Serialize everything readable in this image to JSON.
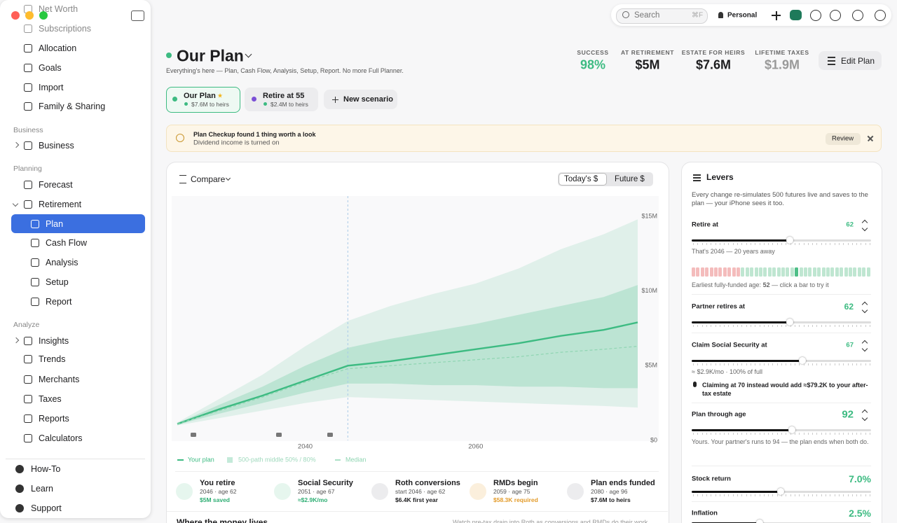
{
  "sidebar": {
    "top": [
      "Net Worth",
      "Subscriptions",
      "Allocation",
      "Goals",
      "Import",
      "Family & Sharing"
    ],
    "sections": [
      {
        "title": "Business",
        "items": [
          "Business"
        ]
      },
      {
        "title": "Planning",
        "items": [
          "Forecast",
          "Retirement",
          "Plan",
          "Cash Flow",
          "Analysis",
          "Setup",
          "Report"
        ]
      },
      {
        "title": "Analyze",
        "items": [
          "Insights",
          "Trends",
          "Merchants",
          "Taxes",
          "Reports",
          "Calculators"
        ]
      }
    ],
    "bottom": [
      "How-To",
      "Learn",
      "Support"
    ]
  },
  "toolbar": {
    "search": "Search",
    "shortcut": "⌘F",
    "profile": "Personal"
  },
  "header": {
    "title": "Our Plan",
    "subtitle": "Everything's here — Plan, Cash Flow, Analysis, Setup, Report. No more Full Planner.",
    "stats": [
      {
        "label": "SUCCESS",
        "value": "98%"
      },
      {
        "label": "AT RETIREMENT",
        "value": "$5M"
      },
      {
        "label": "ESTATE FOR HEIRS",
        "value": "$7.6M"
      },
      {
        "label": "LIFETIME TAXES",
        "value": "$1.9M"
      }
    ],
    "edit": "Edit Plan"
  },
  "scenarios": [
    {
      "name": "Our Plan",
      "star": "★",
      "detail": "$7.6M to heirs"
    },
    {
      "name": "Retire at 55",
      "detail": "$2.4M to heirs"
    }
  ],
  "new_scenario": "New scenario",
  "banner": {
    "title": "Plan Checkup found 1 thing worth a look",
    "text": "Dividend income is turned on",
    "action": "Review"
  },
  "card": {
    "compare": "Compare",
    "toggle": [
      "Today's $",
      "Future $"
    ],
    "milestones": [
      {
        "title": "You retire",
        "sub": "2046 · age 62",
        "detail": "$5M saved"
      },
      {
        "title": "Social Security",
        "sub": "2051 · age 67",
        "detail": "≈$2.9K/mo"
      },
      {
        "title": "Roth conversions",
        "sub": "start 2046 · age 62",
        "detail": "$6.4K first year"
      },
      {
        "title": "RMDs begin",
        "sub": "2059 · age 75",
        "detail": "$58.3K required"
      },
      {
        "title": "Plan ends funded",
        "sub": "2080 · age 96",
        "detail": "$7.6M to heirs"
      }
    ],
    "footer_title": "Where the money lives",
    "footer_text": "Watch pre-tax drain into Roth as conversions and RMDs do their work"
  },
  "chart_data": {
    "type": "fan",
    "x": [
      2025,
      2030,
      2035,
      2040,
      2045,
      2050,
      2055,
      2060,
      2065,
      2070,
      2075,
      2079
    ],
    "xlim": [
      2025,
      2079
    ],
    "xticks": [
      2040,
      2060
    ],
    "ylim": [
      0,
      15
    ],
    "yticks": [
      {
        "value": 15,
        "label": "$15M"
      },
      {
        "value": 10,
        "label": "$10M"
      },
      {
        "value": 5,
        "label": "$5M"
      },
      {
        "value": 0,
        "label": "$0"
      }
    ],
    "series": [
      {
        "name": "Your plan",
        "color": "#3dbb82",
        "values": [
          1.1,
          2.1,
          3.0,
          4.0,
          5.0,
          5.3,
          5.7,
          6.1,
          6.5,
          7.0,
          7.4,
          7.9
        ]
      },
      {
        "name": "Median",
        "color": "#8fd5b2",
        "values": [
          1.1,
          2.0,
          2.9,
          3.9,
          4.8,
          5.0,
          5.2,
          5.4,
          5.6,
          5.9,
          6.1,
          6.3
        ]
      }
    ],
    "band": {
      "name": "500-path middle 50% / 80%",
      "color": "#3dbb82",
      "p50": {
        "upper": [
          1.15,
          2.4,
          3.6,
          5.0,
          6.2,
          6.8,
          7.3,
          7.8,
          8.4,
          9.0,
          9.6,
          10.4
        ],
        "lower": [
          1.05,
          1.8,
          2.5,
          3.2,
          3.8,
          3.8,
          3.7,
          3.7,
          3.6,
          3.6,
          3.5,
          3.5
        ]
      },
      "p80": {
        "upper": [
          1.2,
          2.8,
          4.4,
          6.3,
          8.0,
          9.0,
          9.8,
          10.5,
          11.5,
          12.8,
          13.8,
          14.8
        ],
        "lower": [
          1.0,
          1.5,
          2.0,
          2.5,
          2.9,
          2.8,
          2.7,
          2.6,
          2.5,
          2.4,
          2.3,
          2.2
        ]
      }
    }
  },
  "levers": {
    "title": "Levers",
    "description": "Every change re-simulates 500 futures live and saves to the plan — your iPhone sees it too.",
    "retire": {
      "label": "Retire at",
      "value": "62",
      "note": "That's 2046 — 20 years away",
      "earliest": [
        "Earliest fully-funded age: ",
        "52",
        " — click a bar to try it"
      ]
    },
    "partner": {
      "label": "Partner retires at",
      "value": "62"
    },
    "ss": {
      "label": "Claim Social Security at",
      "value": "67",
      "note": "≈ $2.9K/mo · 100% of full",
      "tip": "Claiming at 70 instead would add ≈$79.2K to your after-tax estate"
    },
    "through": {
      "label": "Plan through age",
      "value": "92",
      "note": "Yours. Your partner's runs to 94 — the plan ends when both do."
    },
    "stock": {
      "label": "Stock return",
      "value": "7.0%"
    },
    "inflation": {
      "label": "Inflation",
      "value": "2.5%"
    }
  }
}
